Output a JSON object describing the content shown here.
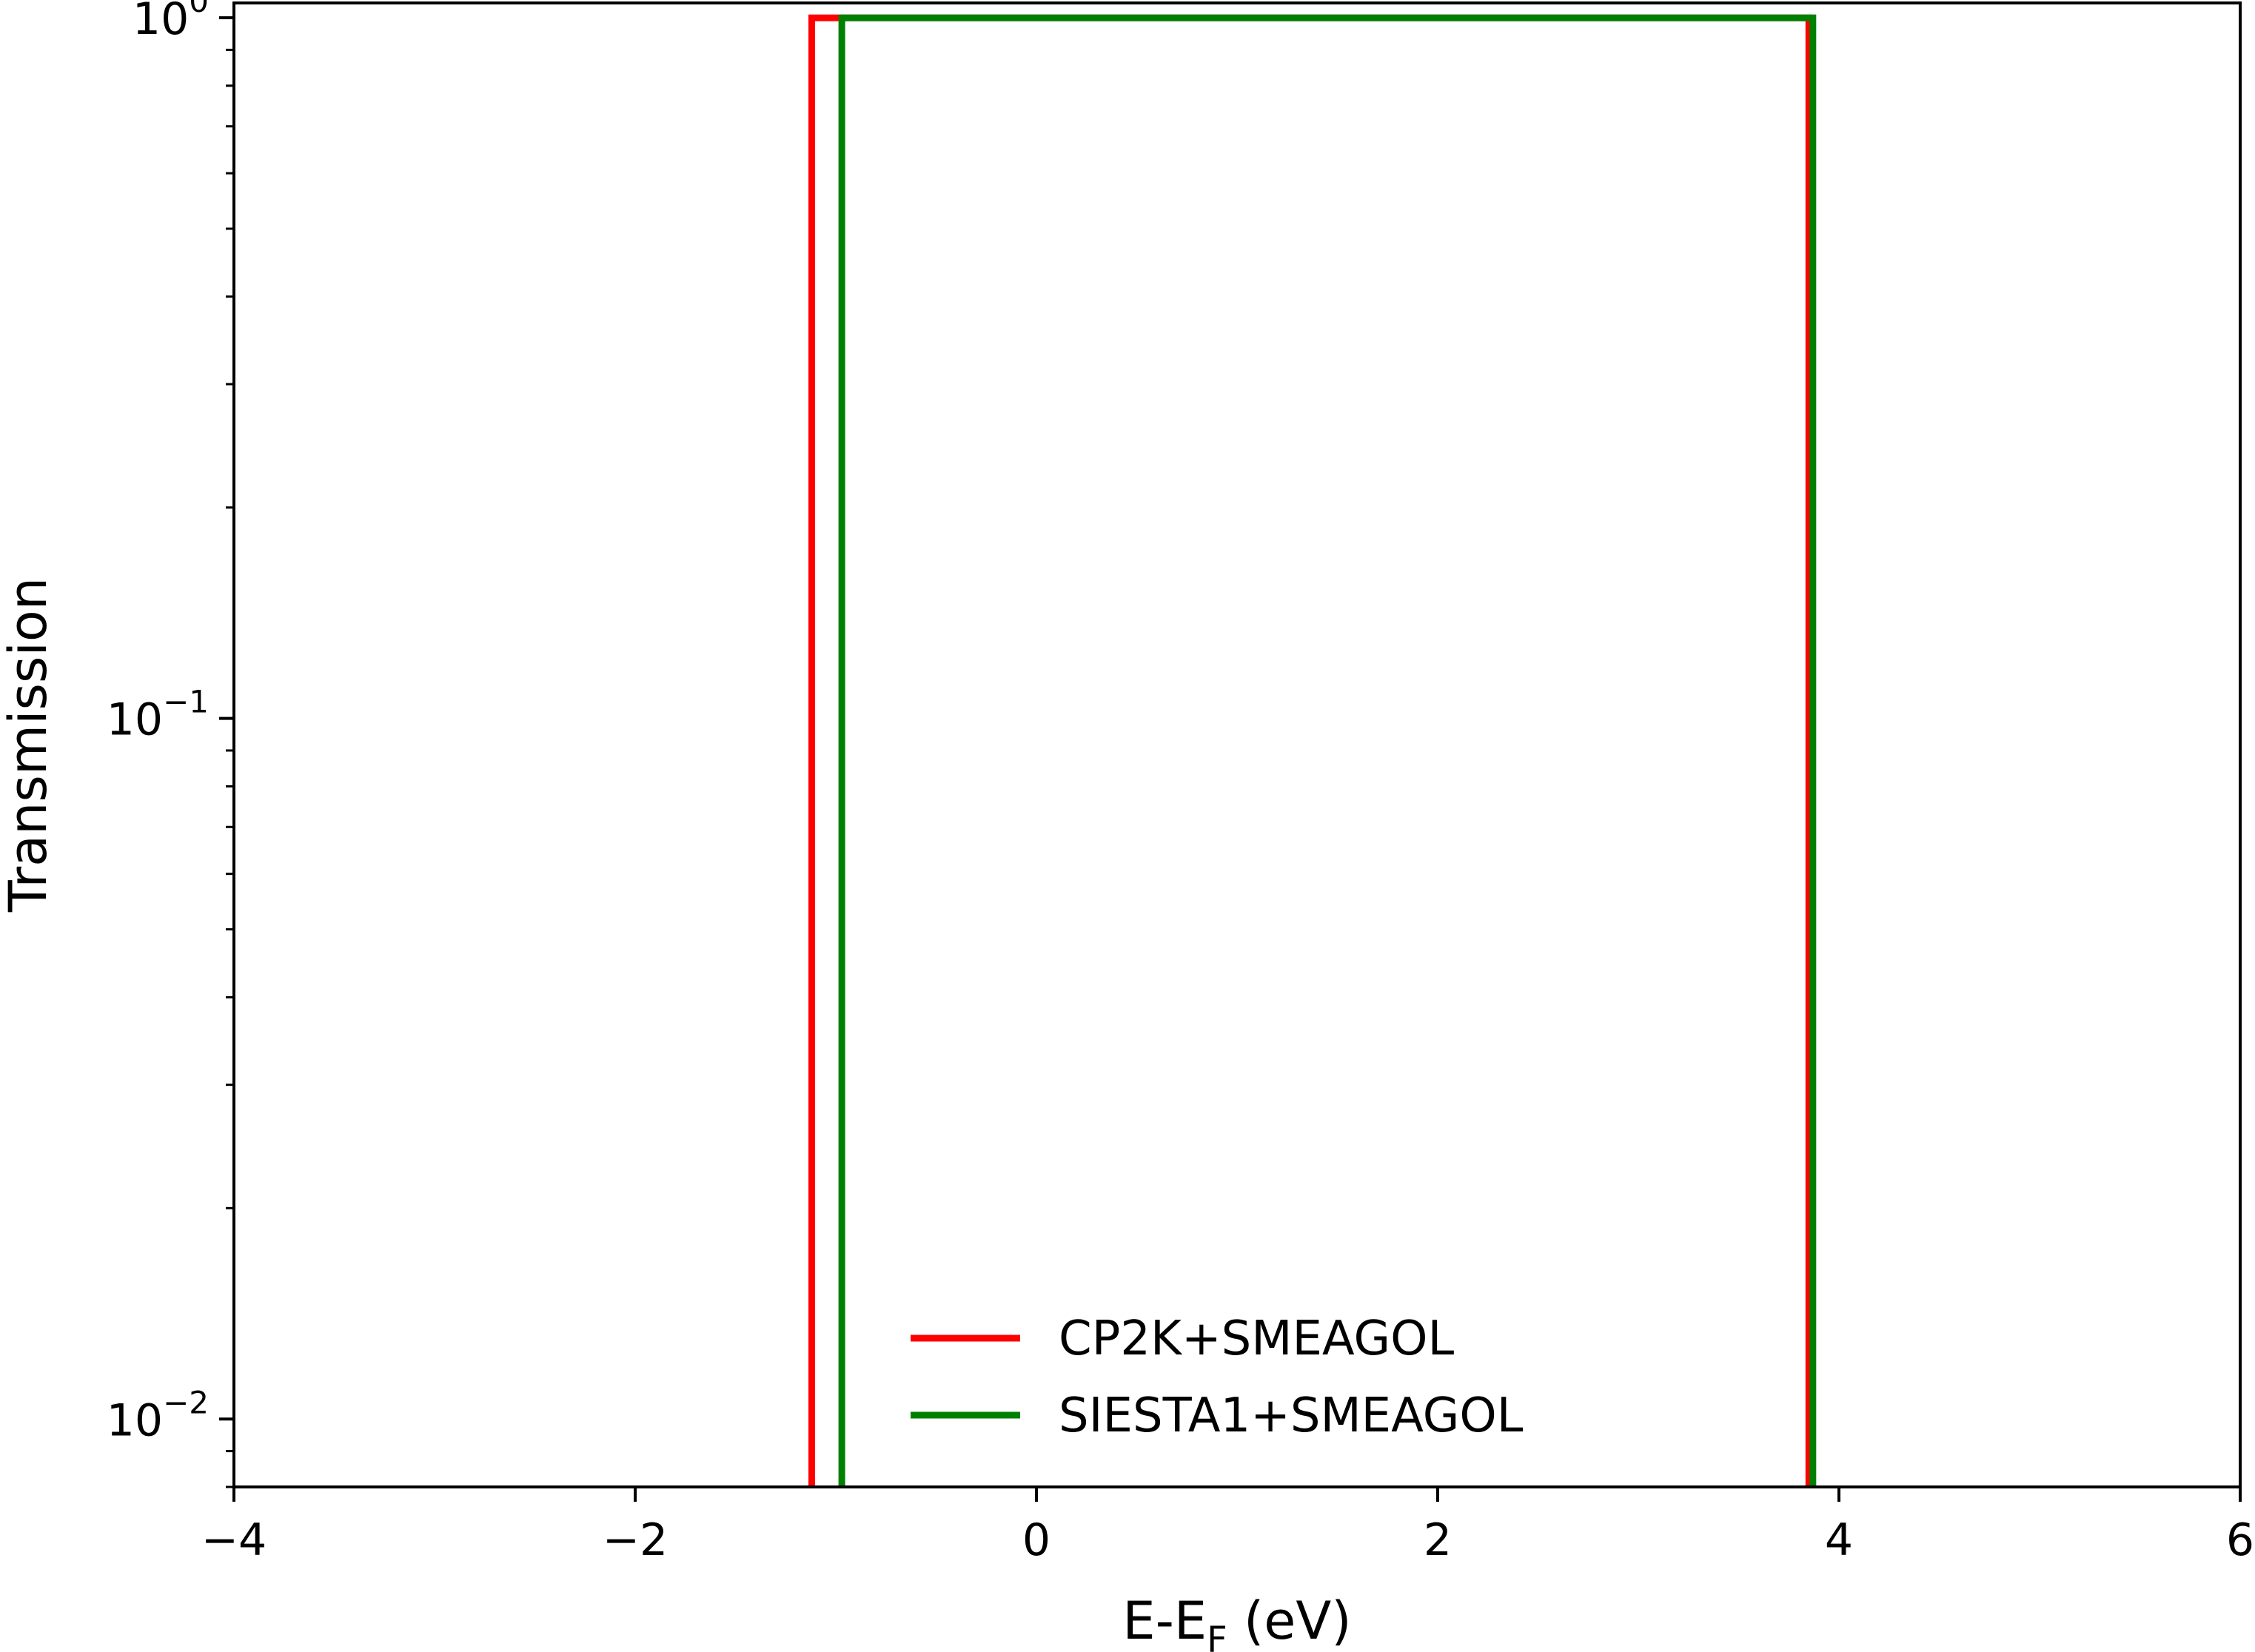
{
  "chart_data": {
    "type": "line",
    "title": "",
    "xlabel": "E-E_F (eV)",
    "xlabel_parts": {
      "main": "E-E",
      "sub": "F",
      "tail": " (eV)"
    },
    "ylabel": "Transmission",
    "xlim": [
      -4,
      6
    ],
    "ylim": [
      0.008,
      1.05
    ],
    "yscale": "log",
    "grid": false,
    "legend_position": "lower-center",
    "x_ticks": [
      {
        "value": -4,
        "label": "−4"
      },
      {
        "value": -2,
        "label": "−2"
      },
      {
        "value": 0,
        "label": "0"
      },
      {
        "value": 2,
        "label": "2"
      },
      {
        "value": 4,
        "label": "4"
      },
      {
        "value": 6,
        "label": "6"
      }
    ],
    "y_ticks": [
      {
        "value": 1,
        "base": "10",
        "exp": "0"
      },
      {
        "value": 0.1,
        "base": "10",
        "exp": "−1"
      },
      {
        "value": 0.01,
        "base": "10",
        "exp": "−2"
      }
    ],
    "series": [
      {
        "name": "CP2K+SMEAGOL",
        "color": "#ff0000",
        "x": [
          -1.12,
          -1.12,
          3.85,
          3.85
        ],
        "y": [
          0.008,
          1.0,
          1.0,
          0.008
        ]
      },
      {
        "name": "SIESTA1+SMEAGOL",
        "color": "#008000",
        "x": [
          -0.97,
          -0.97,
          3.87,
          3.87
        ],
        "y": [
          0.008,
          1.0,
          1.0,
          0.008
        ]
      }
    ]
  }
}
